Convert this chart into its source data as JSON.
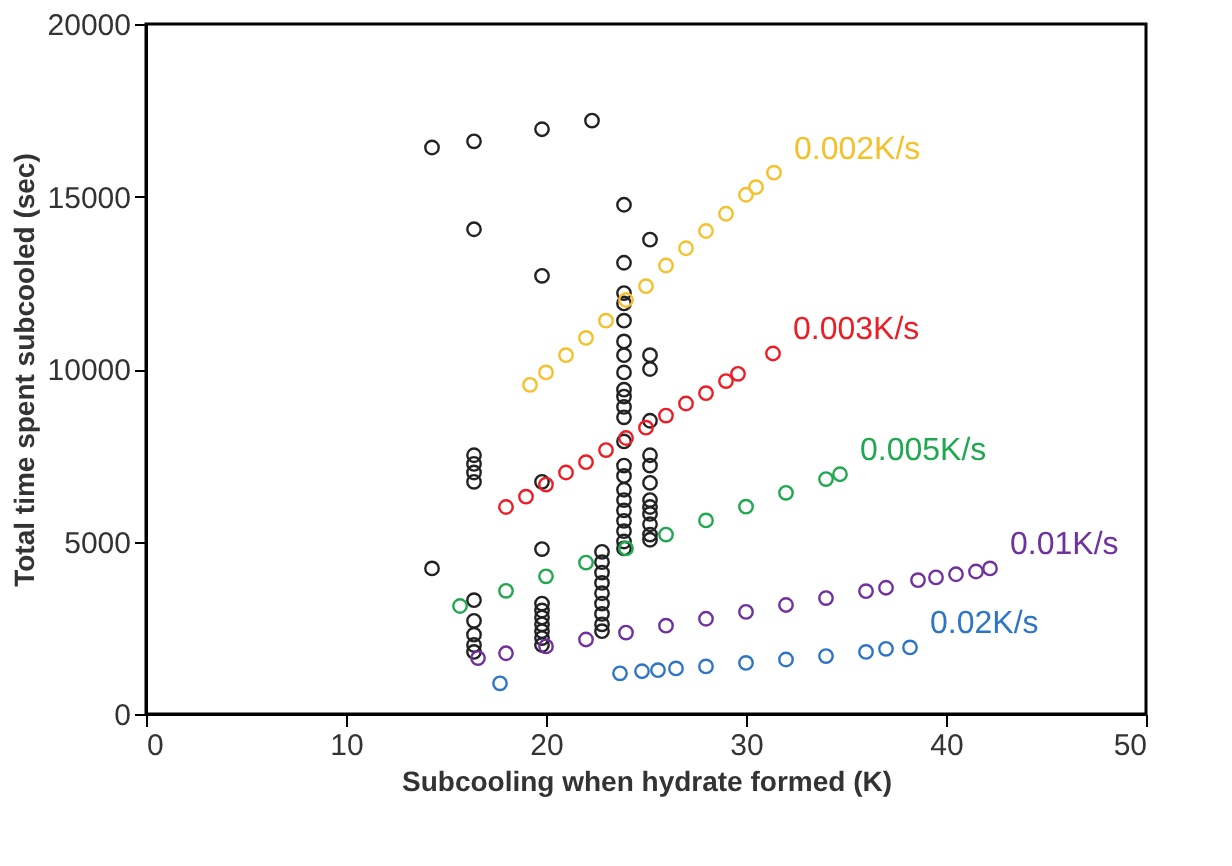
{
  "chart_data": {
    "type": "scatter",
    "xlabel": "Subcooling when hydrate formed (K)",
    "ylabel": "Total time spent subcooled (sec)",
    "xlim": [
      0,
      50
    ],
    "xticks": [
      0,
      10,
      20,
      30,
      40,
      50
    ],
    "ylim": [
      0,
      20000
    ],
    "yticks": [
      0,
      5000,
      10000,
      15000,
      20000
    ],
    "grid": false,
    "marker": "circle",
    "series": [
      {
        "color": "#222222",
        "x": [
          14.3,
          14.3,
          16.4,
          16.4,
          16.4,
          16.4,
          16.4,
          16.4,
          16.4,
          16.4,
          16.4,
          16.4,
          16.4,
          19.8,
          19.8,
          19.8,
          19.8,
          19.8,
          19.8,
          19.8,
          19.8,
          19.8,
          19.8,
          19.8,
          22.3,
          22.8,
          22.8,
          22.8,
          22.8,
          22.8,
          22.8,
          22.8,
          22.8,
          22.8,
          23.9,
          23.9,
          23.9,
          23.9,
          23.9,
          23.9,
          23.9,
          23.9,
          23.9,
          23.9,
          23.9,
          23.9,
          23.9,
          23.9,
          23.9,
          23.9,
          23.9,
          23.9,
          23.9,
          23.9,
          23.9,
          23.9,
          25.2,
          25.2,
          25.2,
          25.2,
          25.2,
          25.2,
          25.2,
          25.2,
          25.2,
          25.2,
          25.2,
          25.2,
          25.2
        ],
        "values": [
          16420,
          4220,
          16600,
          14050,
          7500,
          7250,
          7000,
          6730,
          3300,
          2700,
          2300,
          2000,
          1800,
          16950,
          12700,
          6730,
          4780,
          3200,
          3000,
          2800,
          2600,
          2400,
          2200,
          2000,
          17200,
          4700,
          4400,
          4100,
          3800,
          3500,
          3200,
          2900,
          2600,
          2400,
          14760,
          13080,
          12200,
          11900,
          11400,
          10800,
          10400,
          9900,
          9400,
          9200,
          8900,
          8600,
          7900,
          7200,
          6900,
          6500,
          6200,
          5900,
          5600,
          5300,
          5000,
          4800,
          13750,
          10400,
          10000,
          8500,
          7500,
          7200,
          6700,
          6200,
          6000,
          5800,
          5500,
          5200,
          5050
        ]
      },
      {
        "name": "0.002K/s",
        "color": "#f5c02a",
        "x": [
          19.2,
          20,
          21,
          22,
          23,
          24,
          25,
          26,
          27,
          28,
          29,
          30,
          30.5,
          31.4
        ],
        "values": [
          9540,
          9900,
          10400,
          10900,
          11400,
          12000,
          12400,
          13000,
          13500,
          14000,
          14500,
          15050,
          15270,
          15690
        ]
      },
      {
        "name": "0.003K/s",
        "color": "#ee1c24",
        "x": [
          18,
          19,
          20,
          21,
          22,
          23,
          24,
          25,
          26,
          27,
          28,
          29,
          29.6,
          31.35
        ],
        "values": [
          6000,
          6300,
          6650,
          7000,
          7300,
          7650,
          8000,
          8300,
          8650,
          9000,
          9300,
          9650,
          9860,
          10450
        ]
      },
      {
        "name": "0.005K/s",
        "color": "#1fa84f",
        "x": [
          15.7,
          18,
          20,
          22,
          24,
          26,
          28,
          30,
          32,
          34,
          34.7
        ],
        "values": [
          3130,
          3570,
          3990,
          4390,
          4800,
          5200,
          5610,
          6010,
          6410,
          6810,
          6950
        ]
      },
      {
        "name": "0.01K/s",
        "color": "#7030a0",
        "x": [
          16.6,
          18,
          20,
          22,
          24,
          26,
          28,
          30,
          32,
          34,
          36,
          37,
          38.6,
          39.5,
          40.5,
          41.5,
          42.2
        ],
        "values": [
          1620,
          1760,
          1960,
          2160,
          2360,
          2560,
          2760,
          2960,
          3160,
          3360,
          3560,
          3660,
          3880,
          3960,
          4050,
          4130,
          4220
        ]
      },
      {
        "name": "0.02K/s",
        "color": "#2e75c5",
        "x": [
          17.7,
          23.7,
          24.8,
          25.6,
          26.5,
          28,
          30,
          32,
          34,
          36,
          37,
          38.2
        ],
        "values": [
          890,
          1180,
          1240,
          1270,
          1320,
          1380,
          1480,
          1580,
          1680,
          1800,
          1890,
          1930
        ]
      }
    ]
  }
}
